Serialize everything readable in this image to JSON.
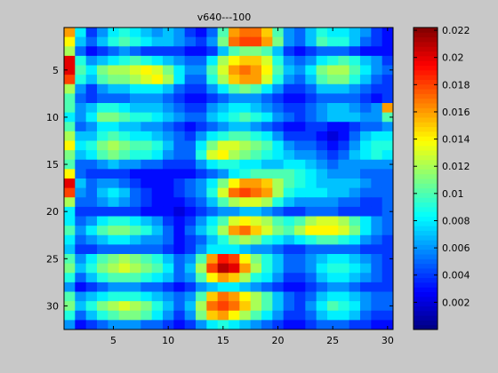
{
  "chart_data": {
    "type": "heatmap",
    "title": "v640---100",
    "xlabel": "",
    "ylabel": "",
    "xlim": [
      0.5,
      30.5
    ],
    "ylim": [
      32.5,
      0.5
    ],
    "x_ticks": [
      5,
      10,
      15,
      20,
      25,
      30
    ],
    "y_ticks": [
      5,
      10,
      15,
      20,
      25,
      30
    ],
    "colorbar": {
      "colormap": "jet",
      "min": 0,
      "max": 0.0222,
      "ticks": [
        0.002,
        0.004,
        0.006,
        0.008,
        0.01,
        0.012,
        0.014,
        0.016,
        0.018,
        0.02,
        0.022
      ],
      "tick_labels": [
        "0.002",
        "0.004",
        "0.006",
        "0.008",
        "0.01",
        "0.012",
        "0.014",
        "0.016",
        "0.018",
        "0.02",
        "0.022"
      ]
    },
    "rows": 32,
    "cols": 30,
    "values": [
      [
        0.016,
        0.008,
        0.004,
        0.006,
        0.008,
        0.009,
        0.008,
        0.007,
        0.006,
        0.007,
        0.006,
        0.004,
        0.003,
        0.005,
        0.01,
        0.016,
        0.017,
        0.017,
        0.015,
        0.01,
        0.006,
        0.005,
        0.007,
        0.009,
        0.008,
        0.008,
        0.007,
        0.006,
        0.004,
        0.003
      ],
      [
        0.014,
        0.007,
        0.005,
        0.007,
        0.009,
        0.01,
        0.009,
        0.008,
        0.007,
        0.007,
        0.006,
        0.005,
        0.004,
        0.006,
        0.011,
        0.017,
        0.018,
        0.018,
        0.016,
        0.011,
        0.006,
        0.005,
        0.007,
        0.01,
        0.009,
        0.009,
        0.007,
        0.005,
        0.004,
        0.003
      ],
      [
        0.012,
        0.005,
        0.003,
        0.004,
        0.005,
        0.006,
        0.005,
        0.004,
        0.004,
        0.004,
        0.004,
        0.003,
        0.003,
        0.004,
        0.007,
        0.01,
        0.011,
        0.011,
        0.01,
        0.007,
        0.004,
        0.003,
        0.004,
        0.005,
        0.005,
        0.005,
        0.004,
        0.003,
        0.003,
        0.003
      ],
      [
        0.02,
        0.009,
        0.006,
        0.007,
        0.008,
        0.009,
        0.01,
        0.009,
        0.008,
        0.007,
        0.006,
        0.005,
        0.005,
        0.008,
        0.012,
        0.014,
        0.015,
        0.015,
        0.013,
        0.009,
        0.006,
        0.005,
        0.006,
        0.008,
        0.009,
        0.01,
        0.009,
        0.007,
        0.006,
        0.004
      ],
      [
        0.02,
        0.01,
        0.008,
        0.011,
        0.012,
        0.012,
        0.013,
        0.014,
        0.013,
        0.011,
        0.008,
        0.006,
        0.006,
        0.01,
        0.013,
        0.016,
        0.017,
        0.016,
        0.014,
        0.01,
        0.007,
        0.006,
        0.008,
        0.011,
        0.012,
        0.012,
        0.01,
        0.008,
        0.006,
        0.005
      ],
      [
        0.018,
        0.009,
        0.007,
        0.01,
        0.011,
        0.011,
        0.012,
        0.013,
        0.014,
        0.012,
        0.008,
        0.005,
        0.005,
        0.009,
        0.012,
        0.015,
        0.016,
        0.016,
        0.013,
        0.009,
        0.006,
        0.005,
        0.007,
        0.01,
        0.011,
        0.011,
        0.009,
        0.007,
        0.005,
        0.004
      ],
      [
        0.012,
        0.006,
        0.004,
        0.006,
        0.007,
        0.007,
        0.008,
        0.008,
        0.008,
        0.007,
        0.005,
        0.004,
        0.004,
        0.006,
        0.008,
        0.01,
        0.011,
        0.01,
        0.008,
        0.006,
        0.004,
        0.004,
        0.005,
        0.007,
        0.007,
        0.007,
        0.006,
        0.005,
        0.004,
        0.004
      ],
      [
        0.01,
        0.005,
        0.004,
        0.005,
        0.005,
        0.005,
        0.006,
        0.006,
        0.006,
        0.005,
        0.004,
        0.003,
        0.003,
        0.004,
        0.005,
        0.006,
        0.006,
        0.006,
        0.005,
        0.004,
        0.003,
        0.003,
        0.004,
        0.005,
        0.005,
        0.005,
        0.005,
        0.004,
        0.003,
        0.004
      ],
      [
        0.01,
        0.006,
        0.007,
        0.009,
        0.009,
        0.008,
        0.007,
        0.007,
        0.007,
        0.006,
        0.005,
        0.004,
        0.004,
        0.006,
        0.007,
        0.008,
        0.008,
        0.007,
        0.006,
        0.005,
        0.004,
        0.004,
        0.005,
        0.006,
        0.007,
        0.007,
        0.006,
        0.005,
        0.006,
        0.016
      ],
      [
        0.008,
        0.006,
        0.008,
        0.011,
        0.011,
        0.01,
        0.009,
        0.009,
        0.008,
        0.007,
        0.006,
        0.005,
        0.005,
        0.007,
        0.008,
        0.009,
        0.01,
        0.009,
        0.008,
        0.006,
        0.005,
        0.004,
        0.005,
        0.006,
        0.007,
        0.007,
        0.007,
        0.006,
        0.006,
        0.01
      ],
      [
        0.01,
        0.005,
        0.006,
        0.008,
        0.008,
        0.007,
        0.007,
        0.006,
        0.006,
        0.005,
        0.004,
        0.003,
        0.004,
        0.005,
        0.006,
        0.007,
        0.007,
        0.006,
        0.005,
        0.004,
        0.003,
        0.003,
        0.004,
        0.004,
        0.003,
        0.003,
        0.004,
        0.005,
        0.005,
        0.006
      ],
      [
        0.012,
        0.007,
        0.007,
        0.009,
        0.01,
        0.009,
        0.008,
        0.008,
        0.007,
        0.006,
        0.005,
        0.004,
        0.006,
        0.008,
        0.009,
        0.01,
        0.01,
        0.009,
        0.008,
        0.006,
        0.004,
        0.004,
        0.004,
        0.003,
        0.002,
        0.003,
        0.005,
        0.007,
        0.008,
        0.008
      ],
      [
        0.014,
        0.008,
        0.009,
        0.011,
        0.012,
        0.011,
        0.01,
        0.01,
        0.009,
        0.007,
        0.005,
        0.005,
        0.008,
        0.011,
        0.013,
        0.013,
        0.012,
        0.011,
        0.01,
        0.008,
        0.006,
        0.005,
        0.005,
        0.004,
        0.003,
        0.004,
        0.006,
        0.008,
        0.009,
        0.009
      ],
      [
        0.011,
        0.007,
        0.008,
        0.01,
        0.011,
        0.01,
        0.009,
        0.009,
        0.008,
        0.006,
        0.005,
        0.005,
        0.009,
        0.013,
        0.014,
        0.012,
        0.011,
        0.01,
        0.009,
        0.008,
        0.007,
        0.006,
        0.006,
        0.005,
        0.004,
        0.005,
        0.007,
        0.008,
        0.009,
        0.008
      ],
      [
        0.01,
        0.005,
        0.005,
        0.006,
        0.007,
        0.006,
        0.006,
        0.005,
        0.005,
        0.004,
        0.004,
        0.004,
        0.006,
        0.008,
        0.009,
        0.009,
        0.008,
        0.008,
        0.007,
        0.007,
        0.008,
        0.008,
        0.007,
        0.006,
        0.005,
        0.006,
        0.006,
        0.006,
        0.006,
        0.006
      ],
      [
        0.014,
        0.005,
        0.004,
        0.004,
        0.004,
        0.004,
        0.003,
        0.003,
        0.003,
        0.003,
        0.003,
        0.003,
        0.004,
        0.005,
        0.006,
        0.008,
        0.009,
        0.01,
        0.01,
        0.01,
        0.01,
        0.009,
        0.008,
        0.007,
        0.006,
        0.006,
        0.006,
        0.005,
        0.005,
        0.005
      ],
      [
        0.02,
        0.007,
        0.005,
        0.006,
        0.006,
        0.005,
        0.004,
        0.003,
        0.003,
        0.003,
        0.004,
        0.005,
        0.006,
        0.008,
        0.011,
        0.014,
        0.016,
        0.016,
        0.015,
        0.012,
        0.01,
        0.009,
        0.008,
        0.007,
        0.007,
        0.007,
        0.007,
        0.006,
        0.005,
        0.005
      ],
      [
        0.018,
        0.006,
        0.005,
        0.007,
        0.008,
        0.007,
        0.005,
        0.004,
        0.003,
        0.003,
        0.004,
        0.005,
        0.006,
        0.009,
        0.013,
        0.017,
        0.018,
        0.017,
        0.016,
        0.012,
        0.009,
        0.008,
        0.008,
        0.008,
        0.007,
        0.007,
        0.006,
        0.005,
        0.005,
        0.005
      ],
      [
        0.012,
        0.005,
        0.005,
        0.006,
        0.007,
        0.006,
        0.005,
        0.004,
        0.003,
        0.003,
        0.003,
        0.004,
        0.005,
        0.007,
        0.01,
        0.012,
        0.013,
        0.013,
        0.012,
        0.009,
        0.007,
        0.006,
        0.006,
        0.006,
        0.006,
        0.005,
        0.005,
        0.004,
        0.004,
        0.005
      ],
      [
        0.008,
        0.004,
        0.004,
        0.004,
        0.004,
        0.004,
        0.004,
        0.003,
        0.003,
        0.003,
        0.002,
        0.003,
        0.004,
        0.005,
        0.006,
        0.006,
        0.007,
        0.007,
        0.006,
        0.005,
        0.004,
        0.004,
        0.005,
        0.005,
        0.005,
        0.004,
        0.004,
        0.004,
        0.004,
        0.005
      ],
      [
        0.008,
        0.005,
        0.006,
        0.008,
        0.009,
        0.009,
        0.008,
        0.007,
        0.006,
        0.004,
        0.003,
        0.004,
        0.006,
        0.008,
        0.01,
        0.013,
        0.014,
        0.013,
        0.012,
        0.01,
        0.009,
        0.01,
        0.012,
        0.013,
        0.013,
        0.012,
        0.01,
        0.008,
        0.006,
        0.005
      ],
      [
        0.01,
        0.006,
        0.008,
        0.01,
        0.011,
        0.011,
        0.01,
        0.009,
        0.007,
        0.005,
        0.003,
        0.005,
        0.007,
        0.009,
        0.012,
        0.016,
        0.017,
        0.015,
        0.013,
        0.011,
        0.01,
        0.012,
        0.014,
        0.014,
        0.014,
        0.013,
        0.011,
        0.008,
        0.006,
        0.005
      ],
      [
        0.008,
        0.005,
        0.006,
        0.007,
        0.008,
        0.008,
        0.007,
        0.006,
        0.006,
        0.005,
        0.003,
        0.004,
        0.005,
        0.007,
        0.009,
        0.011,
        0.012,
        0.011,
        0.009,
        0.008,
        0.007,
        0.008,
        0.009,
        0.01,
        0.01,
        0.009,
        0.008,
        0.006,
        0.005,
        0.004
      ],
      [
        0.007,
        0.004,
        0.004,
        0.005,
        0.005,
        0.005,
        0.005,
        0.005,
        0.005,
        0.004,
        0.003,
        0.004,
        0.006,
        0.008,
        0.008,
        0.008,
        0.007,
        0.006,
        0.006,
        0.005,
        0.004,
        0.004,
        0.005,
        0.005,
        0.005,
        0.005,
        0.005,
        0.004,
        0.004,
        0.004
      ],
      [
        0.01,
        0.006,
        0.008,
        0.01,
        0.011,
        0.012,
        0.011,
        0.01,
        0.009,
        0.007,
        0.005,
        0.006,
        0.01,
        0.016,
        0.019,
        0.018,
        0.014,
        0.011,
        0.009,
        0.007,
        0.005,
        0.005,
        0.006,
        0.007,
        0.008,
        0.008,
        0.007,
        0.006,
        0.005,
        0.004
      ],
      [
        0.011,
        0.007,
        0.009,
        0.011,
        0.012,
        0.013,
        0.012,
        0.011,
        0.01,
        0.008,
        0.005,
        0.007,
        0.012,
        0.018,
        0.021,
        0.02,
        0.016,
        0.012,
        0.009,
        0.007,
        0.005,
        0.005,
        0.006,
        0.008,
        0.009,
        0.009,
        0.008,
        0.007,
        0.005,
        0.004
      ],
      [
        0.009,
        0.005,
        0.007,
        0.009,
        0.01,
        0.01,
        0.01,
        0.009,
        0.008,
        0.007,
        0.005,
        0.006,
        0.01,
        0.014,
        0.016,
        0.015,
        0.012,
        0.009,
        0.008,
        0.006,
        0.004,
        0.004,
        0.005,
        0.007,
        0.008,
        0.008,
        0.007,
        0.006,
        0.005,
        0.004
      ],
      [
        0.006,
        0.003,
        0.004,
        0.005,
        0.006,
        0.006,
        0.006,
        0.005,
        0.005,
        0.004,
        0.003,
        0.004,
        0.006,
        0.007,
        0.008,
        0.008,
        0.007,
        0.006,
        0.005,
        0.004,
        0.003,
        0.003,
        0.004,
        0.005,
        0.006,
        0.006,
        0.005,
        0.004,
        0.004,
        0.004
      ],
      [
        0.01,
        0.006,
        0.007,
        0.008,
        0.009,
        0.009,
        0.009,
        0.008,
        0.007,
        0.006,
        0.005,
        0.006,
        0.01,
        0.015,
        0.017,
        0.016,
        0.014,
        0.012,
        0.01,
        0.007,
        0.005,
        0.004,
        0.005,
        0.007,
        0.008,
        0.008,
        0.007,
        0.006,
        0.005,
        0.005
      ],
      [
        0.011,
        0.007,
        0.009,
        0.011,
        0.012,
        0.013,
        0.012,
        0.011,
        0.009,
        0.007,
        0.005,
        0.007,
        0.012,
        0.017,
        0.018,
        0.017,
        0.015,
        0.012,
        0.01,
        0.007,
        0.005,
        0.004,
        0.006,
        0.008,
        0.01,
        0.009,
        0.008,
        0.006,
        0.005,
        0.005
      ],
      [
        0.009,
        0.005,
        0.007,
        0.009,
        0.01,
        0.011,
        0.011,
        0.01,
        0.008,
        0.006,
        0.004,
        0.006,
        0.011,
        0.015,
        0.016,
        0.014,
        0.012,
        0.01,
        0.008,
        0.006,
        0.004,
        0.004,
        0.005,
        0.007,
        0.008,
        0.008,
        0.007,
        0.005,
        0.004,
        0.004
      ],
      [
        0.006,
        0.003,
        0.004,
        0.005,
        0.006,
        0.006,
        0.006,
        0.005,
        0.005,
        0.004,
        0.003,
        0.004,
        0.006,
        0.008,
        0.009,
        0.008,
        0.007,
        0.006,
        0.005,
        0.004,
        0.003,
        0.003,
        0.004,
        0.005,
        0.005,
        0.005,
        0.004,
        0.004,
        0.003,
        0.003
      ]
    ]
  }
}
